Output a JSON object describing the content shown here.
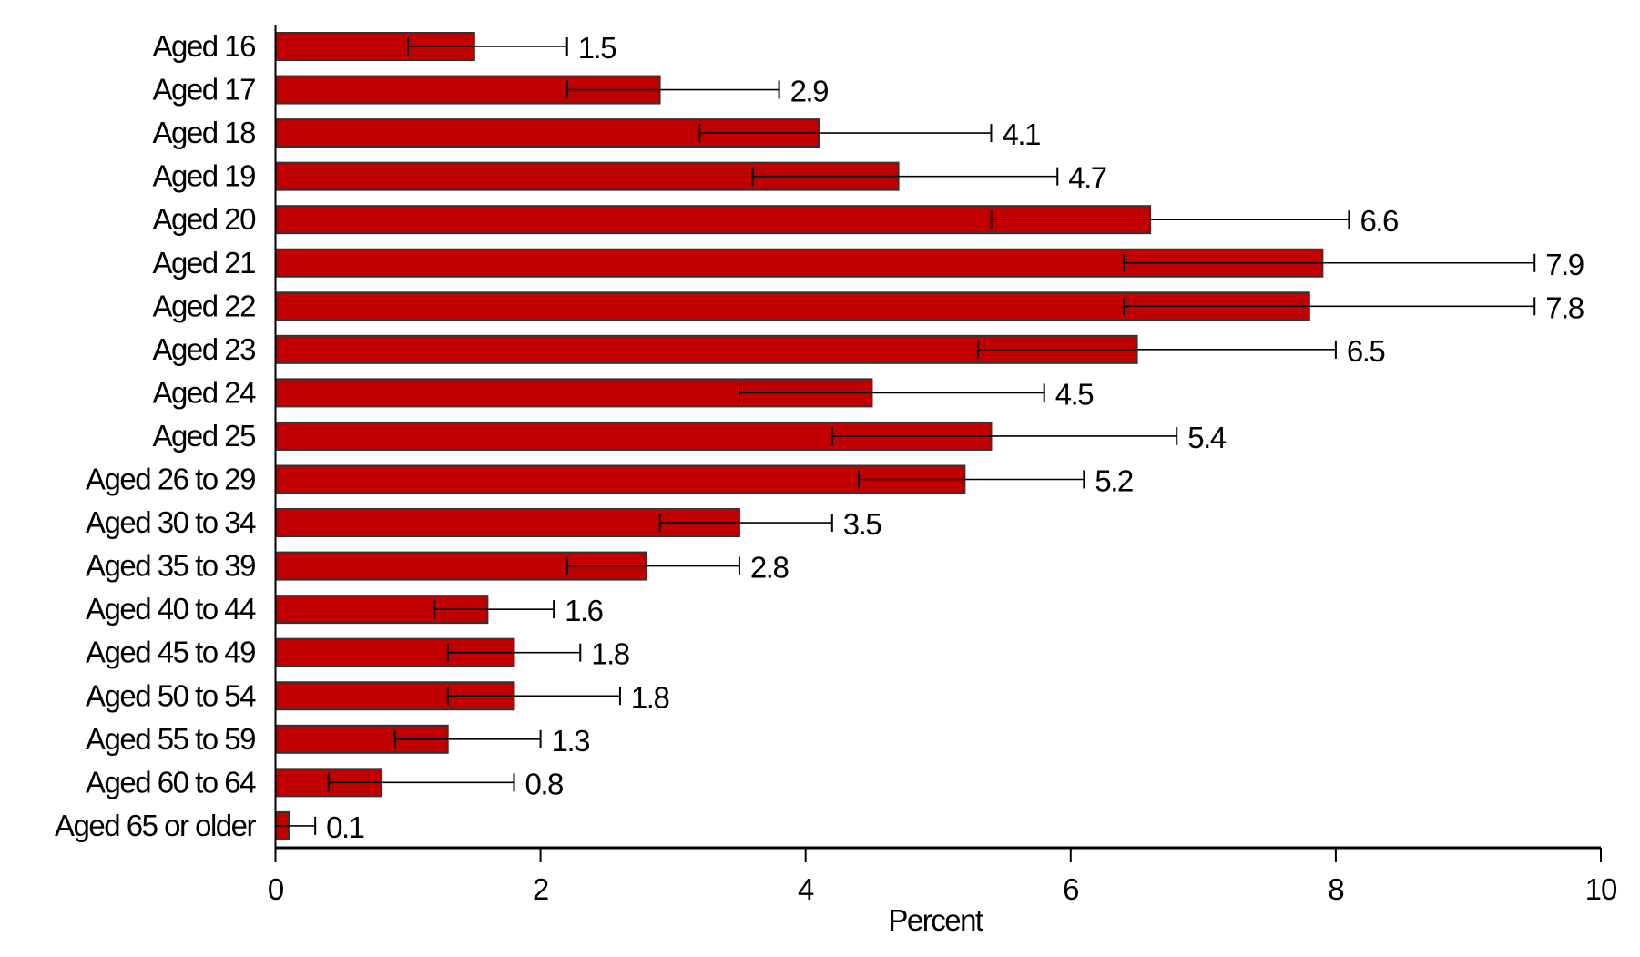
{
  "chart_data": {
    "type": "bar",
    "orientation": "horizontal",
    "title": "",
    "xlabel": "Percent",
    "ylabel": "",
    "xlim": [
      0,
      10
    ],
    "xticks": [
      "0",
      "2",
      "4",
      "6",
      "8",
      "10"
    ],
    "grid": false,
    "bar_color": "#c00000",
    "categories": [
      "Aged 16",
      "Aged 17",
      "Aged 18",
      "Aged 19",
      "Aged 20",
      "Aged 21",
      "Aged 22",
      "Aged 23",
      "Aged 24",
      "Aged 25",
      "Aged 26 to 29",
      "Aged 30 to 34",
      "Aged 35 to 39",
      "Aged 40 to 44",
      "Aged 45 to 49",
      "Aged 50 to 54",
      "Aged 55 to 59",
      "Aged 60 to 64",
      "Aged 65 or older"
    ],
    "values": [
      1.5,
      2.9,
      4.1,
      4.7,
      6.6,
      7.9,
      7.8,
      6.5,
      4.5,
      5.4,
      5.2,
      3.5,
      2.8,
      1.6,
      1.8,
      1.8,
      1.3,
      0.8,
      0.1
    ],
    "value_labels": [
      "1.5",
      "2.9",
      "4.1",
      "4.7",
      "6.6",
      "7.9",
      "7.8",
      "6.5",
      "4.5",
      "5.4",
      "5.2",
      "3.5",
      "2.8",
      "1.6",
      "1.8",
      "1.8",
      "1.3",
      "0.8",
      "0.1"
    ],
    "error_low": [
      1.0,
      2.2,
      3.2,
      3.6,
      5.4,
      6.4,
      6.4,
      5.3,
      3.5,
      4.2,
      4.4,
      2.9,
      2.2,
      1.2,
      1.3,
      1.3,
      0.9,
      0.4,
      0.0
    ],
    "error_high": [
      2.2,
      3.8,
      5.4,
      5.9,
      8.1,
      9.5,
      9.5,
      8.0,
      5.8,
      6.8,
      6.1,
      4.2,
      3.5,
      2.1,
      2.3,
      2.6,
      2.0,
      1.8,
      0.3
    ]
  }
}
